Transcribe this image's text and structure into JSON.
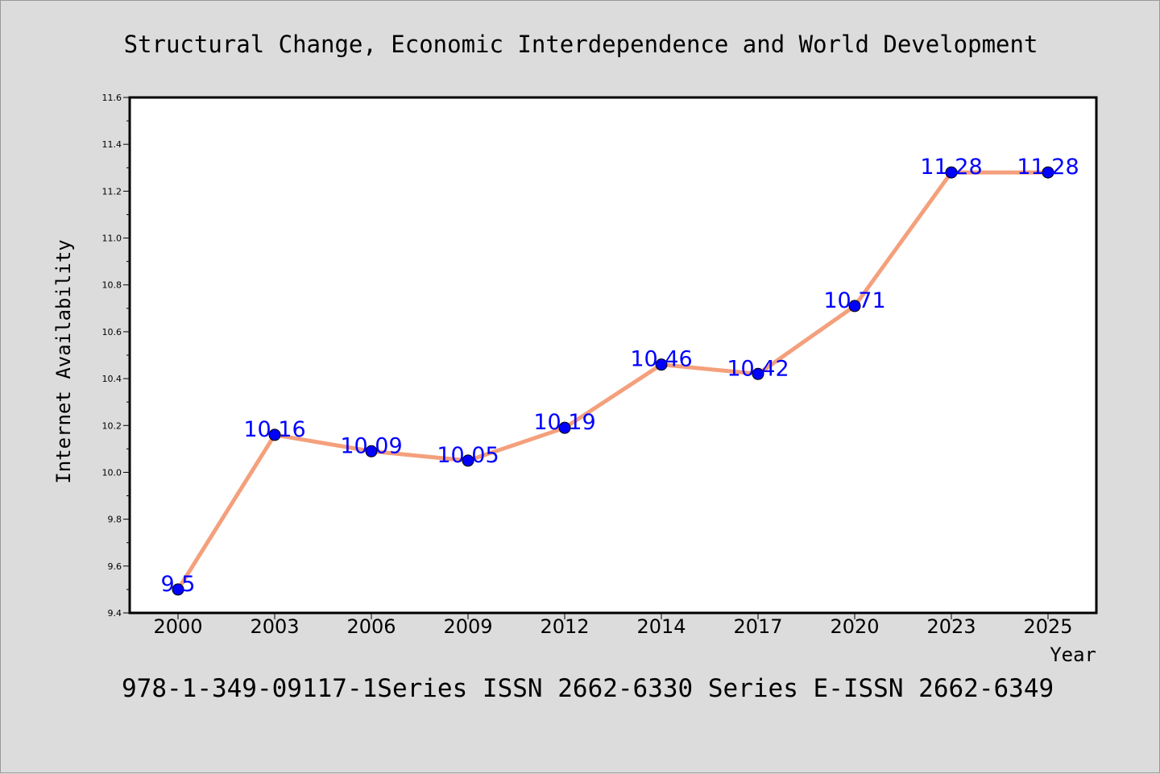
{
  "header": {
    "title": "Structural Change, Economic Interdependence and World Development"
  },
  "footer": {
    "text": "978-1-349-09117-1Series ISSN 2662-6330 Series E-ISSN 2662-6349"
  },
  "chart_data": {
    "type": "line",
    "title": "Structural Change, Economic Interdependence and World Development",
    "xlabel": "Year",
    "ylabel": "Internet Availability",
    "categories": [
      "2000",
      "2003",
      "2006",
      "2009",
      "2012",
      "2014",
      "2017",
      "2020",
      "2023",
      "2025"
    ],
    "series": [
      {
        "values": [
          9.5,
          10.16,
          10.09,
          10.05,
          10.19,
          10.46,
          10.42,
          10.71,
          11.28,
          11.28
        ]
      }
    ],
    "data_labels": [
      "9.5",
      "10.16",
      "10.09",
      "10.05",
      "10.19",
      "10.46",
      "10.42",
      "10.71",
      "11.28",
      "11.28"
    ],
    "ylim": [
      9.4,
      11.6
    ],
    "yticks": [
      "9.4",
      "9.6",
      "9.8",
      "10.0",
      "10.2",
      "10.4",
      "10.6",
      "10.8",
      "11.0",
      "11.2",
      "11.4",
      "11.6"
    ],
    "grid": false,
    "colors": {
      "line": "#f4a07c",
      "marker": "#0000ff",
      "label": "#0000ff",
      "plot_background": "#ffffff",
      "page_background": "#dcdcdc"
    }
  }
}
